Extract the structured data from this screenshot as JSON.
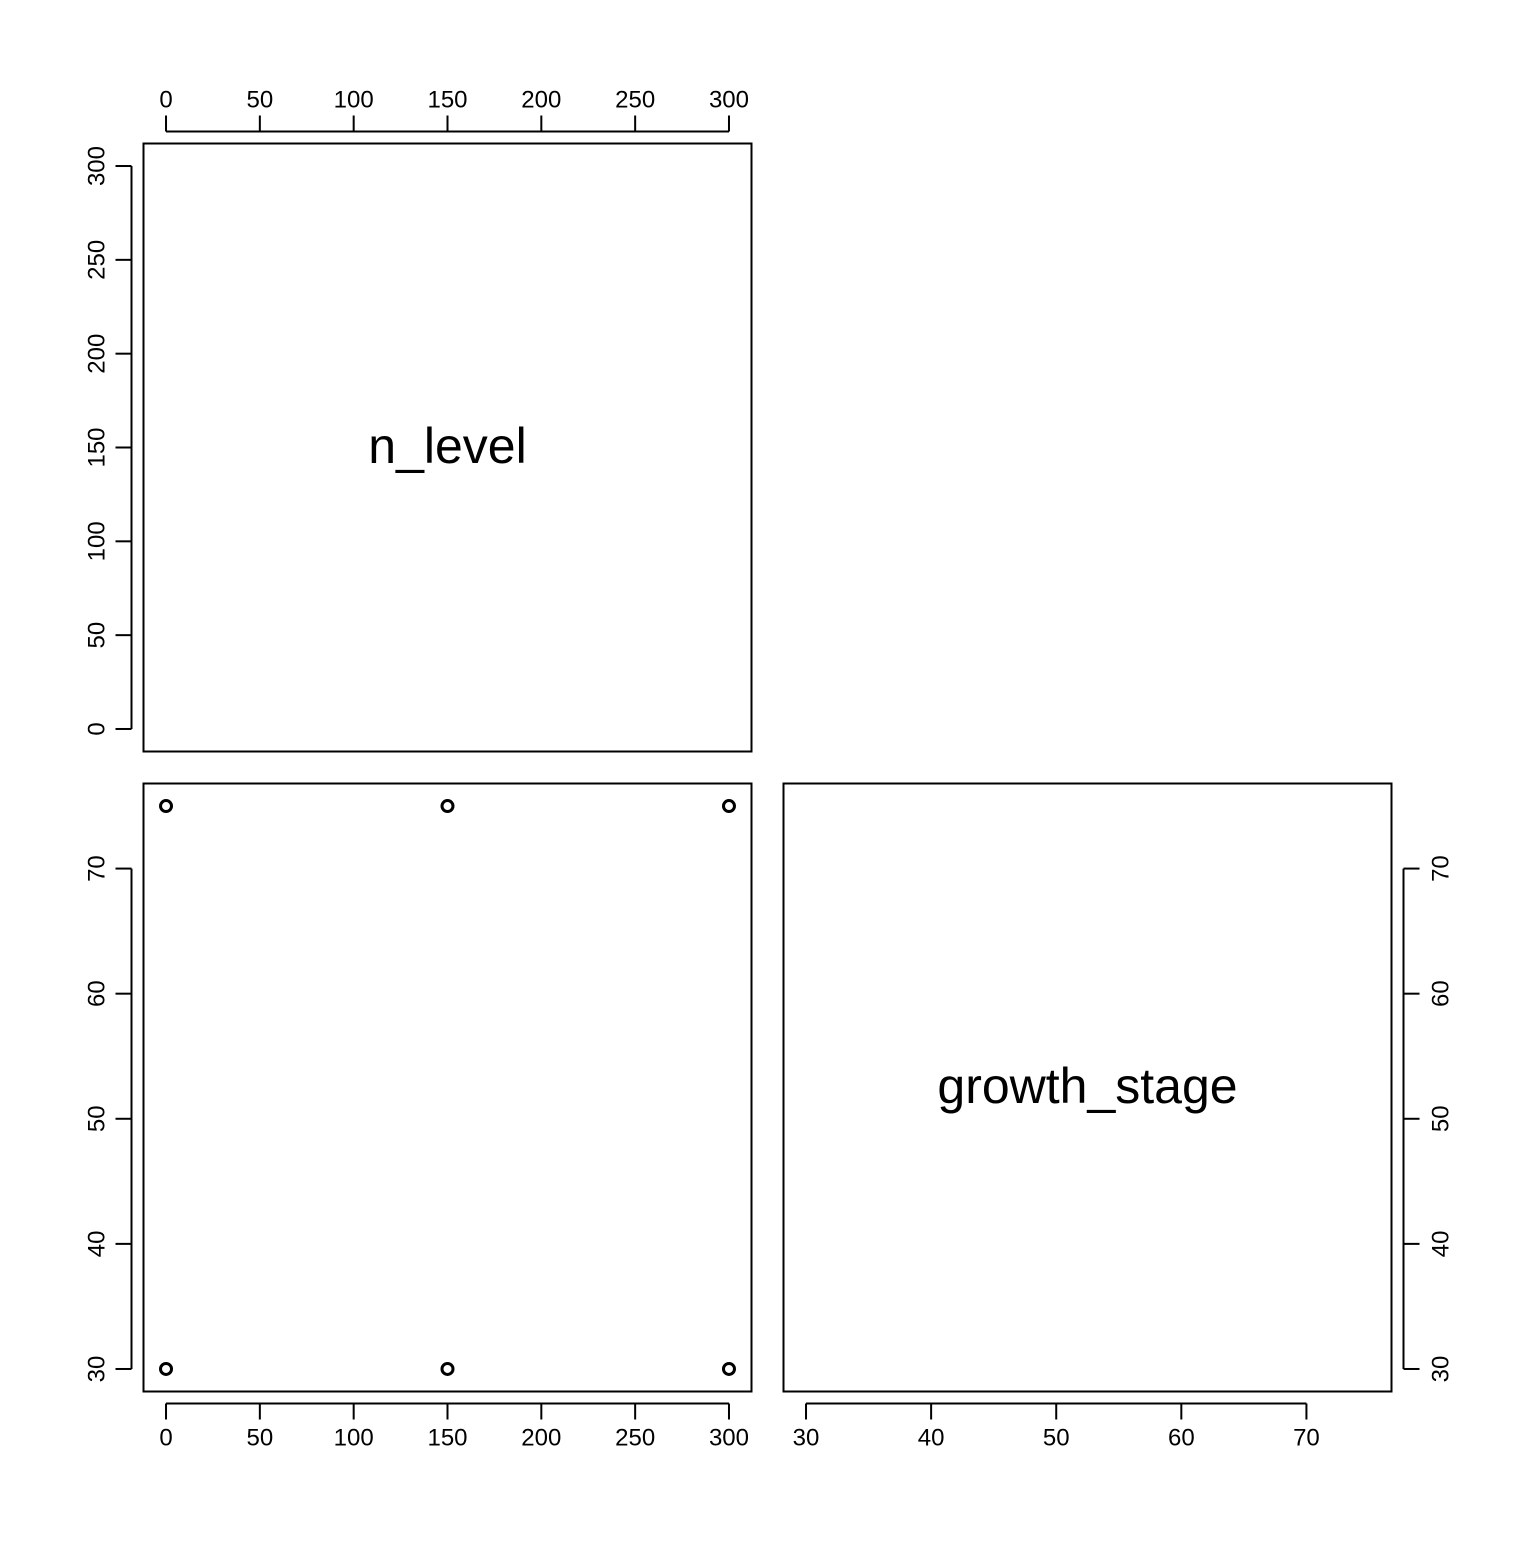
{
  "chart_data": {
    "type": "scatter",
    "layout": "pairs-matrix",
    "variables": [
      {
        "name": "n_level",
        "range": [
          -12,
          312
        ],
        "ticks": [
          0,
          50,
          100,
          150,
          200,
          250,
          300
        ],
        "tick_labels": [
          "0",
          "50",
          "100",
          "150",
          "200",
          "250",
          "300"
        ]
      },
      {
        "name": "growth_stage",
        "range": [
          28.2,
          76.8
        ],
        "ticks": [
          30,
          40,
          50,
          60,
          70
        ],
        "tick_labels": [
          "30",
          "40",
          "50",
          "60",
          "70"
        ]
      }
    ],
    "points": [
      {
        "n_level": 0,
        "growth_stage": 75
      },
      {
        "n_level": 150,
        "growth_stage": 75
      },
      {
        "n_level": 300,
        "growth_stage": 75
      },
      {
        "n_level": 0,
        "growth_stage": 30
      },
      {
        "n_level": 150,
        "growth_stage": 30
      },
      {
        "n_level": 300,
        "growth_stage": 30
      }
    ],
    "grid": false
  }
}
